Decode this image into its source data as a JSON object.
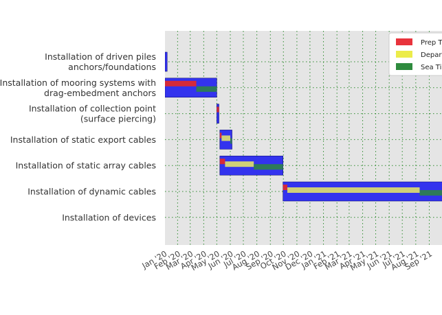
{
  "chart_data": {
    "type": "gantt",
    "title": "",
    "xlabel": "",
    "ylabel": "",
    "grid": true,
    "legend_placement": "top-right",
    "x_ticks": [
      "Jan '20",
      "Feb '20",
      "Mar '20",
      "Apr '20",
      "May '20",
      "Jun '20",
      "Jul '20",
      "Aug '20",
      "Sep '20",
      "Oct '20",
      "Nov '20",
      "Dec '20",
      "Jan '21",
      "Feb '21",
      "Mar '21",
      "Apr '21",
      "May '21",
      "Jun '21",
      "Jul '21",
      "Aug '21",
      "Sep '21"
    ],
    "xlim": [
      "2020-01-03",
      "2021-10-05"
    ],
    "legend": [
      {
        "name": "Prep Time",
        "color": "#e8333c"
      },
      {
        "name": "Departure",
        "color": "#ecec4a"
      },
      {
        "name": "Sea Time",
        "color": "#2e8b3e"
      }
    ],
    "colors": {
      "total": "#3333ee",
      "prep": "#d42a3a",
      "departure": "#cfcf78",
      "sea": "#2e7a5a",
      "plot_bg": "#e5e5e5",
      "grid": "#2e8b2e"
    },
    "tasks": [
      {
        "label": "Installation of driven piles\nanchors/foundations",
        "start": "2020-01-03",
        "end": "2020-01-08",
        "segments": []
      },
      {
        "label": "Installation of mooring systems with\ndrag-embedment anchors",
        "start": "2020-01-03",
        "end": "2020-05-01",
        "segments": [
          {
            "phase": "prep",
            "start": "2020-01-03",
            "end": "2020-03-15"
          },
          {
            "phase": "sea",
            "start": "2020-03-15",
            "end": "2020-05-01"
          }
        ]
      },
      {
        "label": "Installation of collection point\n(surface piercing)",
        "start": "2020-05-01",
        "end": "2020-05-06",
        "segments": [
          {
            "phase": "prep",
            "start": "2020-05-01",
            "end": "2020-05-06"
          }
        ]
      },
      {
        "label": "Installation of static export cables",
        "start": "2020-05-08",
        "end": "2020-06-05",
        "segments": [
          {
            "phase": "prep",
            "start": "2020-05-08",
            "end": "2020-05-12"
          },
          {
            "phase": "departure",
            "start": "2020-05-12",
            "end": "2020-06-01"
          },
          {
            "phase": "sea",
            "start": "2020-06-01",
            "end": "2020-06-05"
          }
        ]
      },
      {
        "label": "Installation of static array cables",
        "start": "2020-05-08",
        "end": "2020-09-30",
        "segments": [
          {
            "phase": "prep",
            "start": "2020-05-08",
            "end": "2020-05-20"
          },
          {
            "phase": "departure",
            "start": "2020-05-20",
            "end": "2020-07-25"
          },
          {
            "phase": "sea",
            "start": "2020-07-25",
            "end": "2020-09-30"
          }
        ]
      },
      {
        "label": "Installation of dynamic cables",
        "start": "2020-09-30",
        "end": "2021-10-05",
        "segments": [
          {
            "phase": "prep",
            "start": "2020-09-30",
            "end": "2020-10-10"
          },
          {
            "phase": "departure",
            "start": "2020-10-10",
            "end": "2021-08-10"
          },
          {
            "phase": "sea",
            "start": "2021-08-10",
            "end": "2021-10-05"
          }
        ]
      },
      {
        "label": "Installation of devices",
        "start": "",
        "end": "",
        "segments": []
      }
    ]
  }
}
